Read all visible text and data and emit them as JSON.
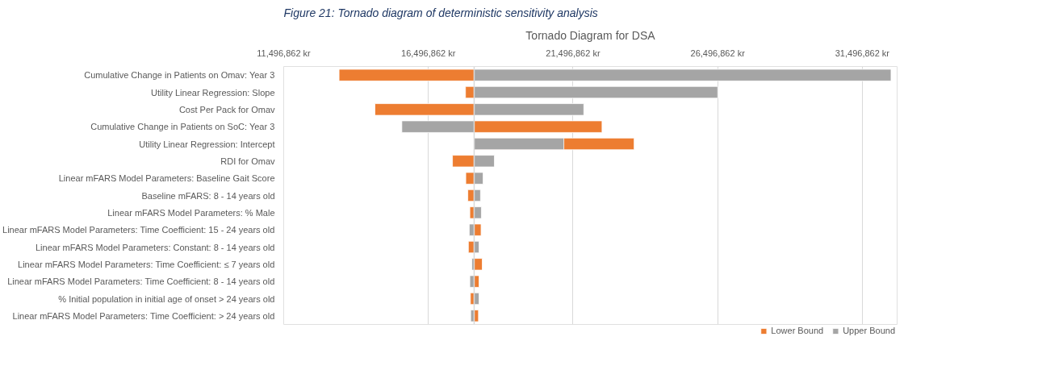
{
  "chart_data": {
    "type": "bar",
    "orientation": "horizontal",
    "title": "Tornado Diagram for DSA",
    "annotations": [
      "Figure 21: Tornado diagram of deterministic sensitivity analysis"
    ],
    "categories": [
      "Cumulative Change in Patients on Omav: Year 3",
      "Utility Linear Regression: Slope",
      "Cost Per Pack for Omav",
      "Cumulative Change in Patients on SoC: Year 3",
      "Utility Linear Regression: Intercept",
      "RDI for Omav",
      "Linear mFARS Model Parameters: Baseline Gait Score",
      "Baseline mFARS: 8 - 14 years old",
      "Linear mFARS Model Parameters: % Male",
      "Linear mFARS Model Parameters: Time Coefficient: 15 - 24 years old",
      "Linear mFARS Model Parameters: Constant: 8 - 14 years old",
      "Linear mFARS Model Parameters: Time Coefficient: ≤ 7 years old",
      "Linear mFARS Model Parameters: Time Coefficient: 8 - 14 years old",
      "% Initial population in initial age of onset > 24 years old",
      "Linear mFARS Model Parameters: Time Coefficient: > 24 years old"
    ],
    "series": [
      {
        "name": "Lower Bound",
        "color": "#ed7d31",
        "base": [
          18080000,
          18080000,
          18080000,
          18080000,
          18080000,
          18080000,
          18080000,
          18080000,
          18080000,
          18080000,
          18080000,
          18080000,
          18080000,
          18080000,
          18080000
        ],
        "values": [
          -4670000,
          -300000,
          -3430000,
          4420000,
          5530000,
          -750000,
          -290000,
          -220000,
          -150000,
          240000,
          -200000,
          280000,
          170000,
          -130000,
          150000
        ]
      },
      {
        "name": "Upper Bound",
        "color": "#a5a5a5",
        "base": [
          18080000,
          18080000,
          18080000,
          18080000,
          18080000,
          18080000,
          18080000,
          18080000,
          18080000,
          18080000,
          18080000,
          18080000,
          18080000,
          18080000,
          18080000
        ],
        "values": [
          14410000,
          8420000,
          3790000,
          -2500000,
          3100000,
          700000,
          310000,
          220000,
          250000,
          -170000,
          170000,
          -80000,
          -150000,
          170000,
          -120000
        ]
      }
    ],
    "xlim": [
      11496862,
      32700000
    ],
    "xticks": [
      {
        "value": 11496862,
        "label": "11,496,862 kr"
      },
      {
        "value": 16496862,
        "label": "16,496,862 kr"
      },
      {
        "value": 21496862,
        "label": "21,496,862 kr"
      },
      {
        "value": 26496862,
        "label": "26,496,862 kr"
      },
      {
        "value": 31496862,
        "label": "31,496,862 kr"
      }
    ],
    "ref_lines": [
      {
        "axis": "x",
        "value": 18080000,
        "label": null,
        "color": "#d9d9d9"
      }
    ],
    "grid": "x",
    "legend": "bottom"
  }
}
